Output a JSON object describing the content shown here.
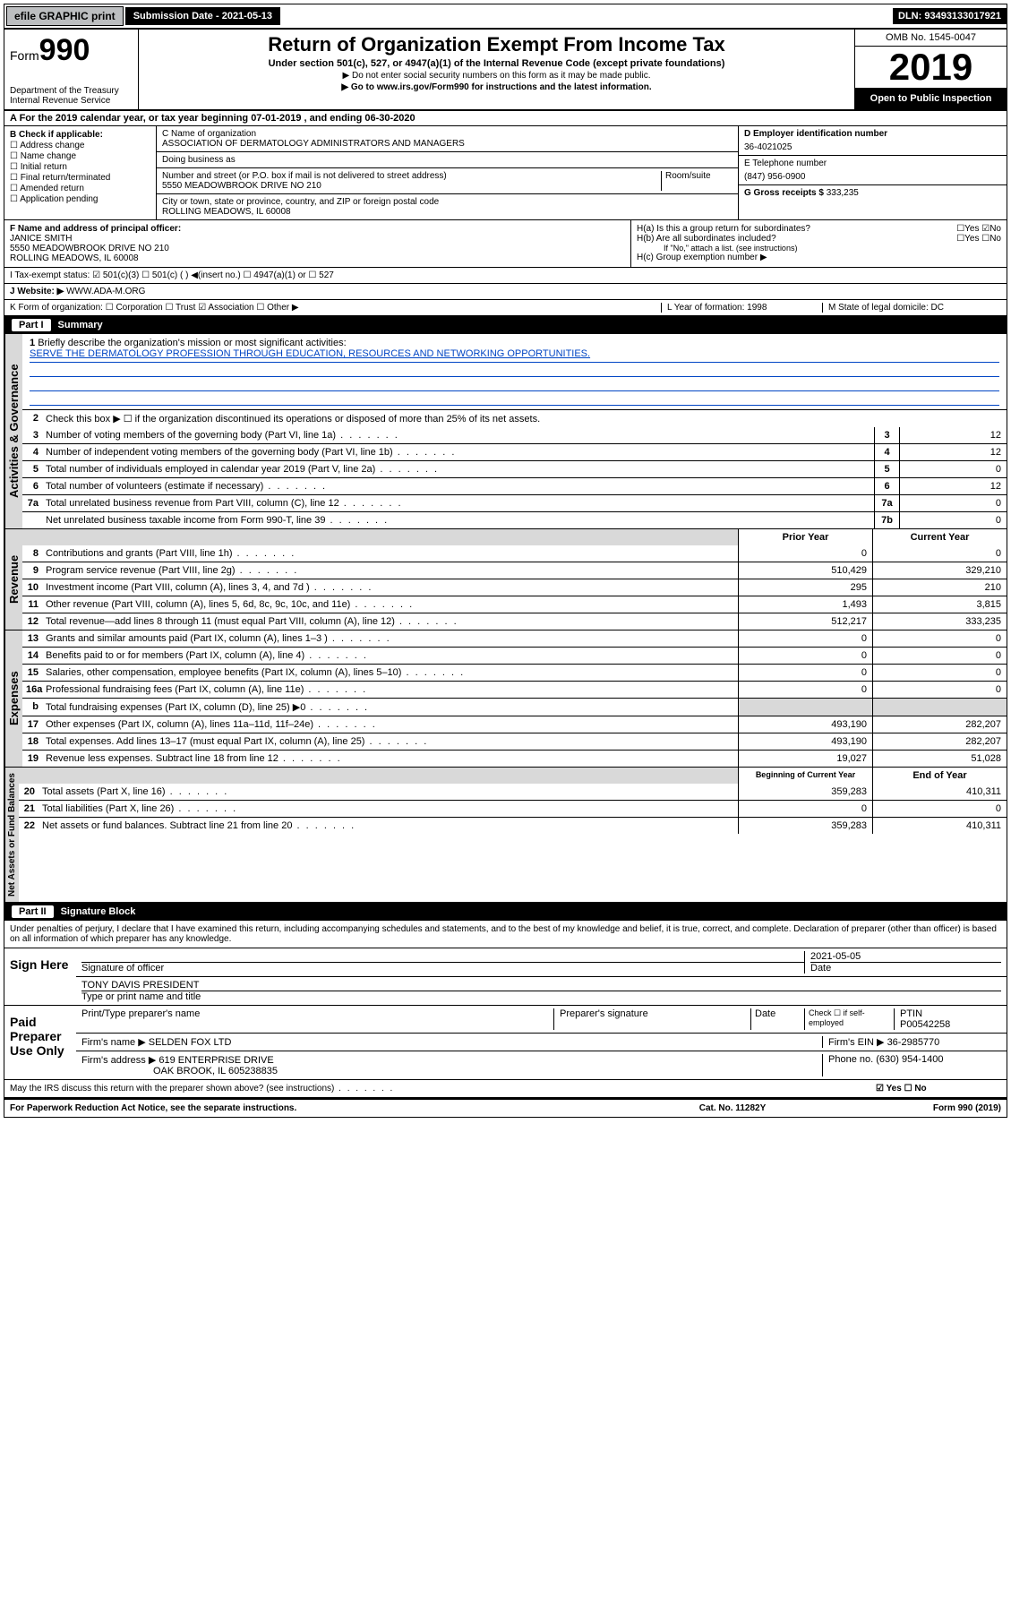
{
  "topbar": {
    "efile": "efile GRAPHIC print",
    "sublabel": "Submission Date - 2021-05-13",
    "dln": "DLN: 93493133017921"
  },
  "header": {
    "form_prefix": "Form",
    "form_num": "990",
    "dept": "Department of the Treasury",
    "irs": "Internal Revenue Service",
    "title": "Return of Organization Exempt From Income Tax",
    "subtitle": "Under section 501(c), 527, or 4947(a)(1) of the Internal Revenue Code (except private foundations)",
    "note1": "▶ Do not enter social security numbers on this form as it may be made public.",
    "note2": "▶ Go to www.irs.gov/Form990 for instructions and the latest information.",
    "omb": "OMB No. 1545-0047",
    "year": "2019",
    "open": "Open to Public Inspection"
  },
  "line_a": "A For the 2019 calendar year, or tax year beginning 07-01-2019   , and ending 06-30-2020",
  "box_b": {
    "title": "B Check if applicable:",
    "opts": [
      "Address change",
      "Name change",
      "Initial return",
      "Final return/terminated",
      "Amended return",
      "Application pending"
    ]
  },
  "box_c": {
    "label_name": "C Name of organization",
    "org": "ASSOCIATION OF DERMATOLOGY ADMINISTRATORS AND MANAGERS",
    "dba_label": "Doing business as",
    "dba": "",
    "addr_label": "Number and street (or P.O. box if mail is not delivered to street address)",
    "room_label": "Room/suite",
    "addr": "5550 MEADOWBROOK DRIVE NO 210",
    "city_label": "City or town, state or province, country, and ZIP or foreign postal code",
    "city": "ROLLING MEADOWS, IL  60008"
  },
  "box_d": {
    "label": "D Employer identification number",
    "val": "36-4021025"
  },
  "box_e": {
    "label": "E Telephone number",
    "val": "(847) 956-0900"
  },
  "box_g": {
    "label": "G Gross receipts $",
    "val": "333,235"
  },
  "box_f": {
    "label": "F Name and address of principal officer:",
    "name": "JANICE SMITH",
    "addr1": "5550 MEADOWBROOK DRIVE NO 210",
    "addr2": "ROLLING MEADOWS, IL  60008"
  },
  "box_h": {
    "a": "H(a)  Is this a group return for subordinates?",
    "b": "H(b)  Are all subordinates included?",
    "bnote": "If \"No,\" attach a list. (see instructions)",
    "c": "H(c)  Group exemption number ▶",
    "a_no": true
  },
  "line_i": "I   Tax-exempt status:    ☑ 501(c)(3)     ☐ 501(c) (  ) ◀(insert no.)     ☐ 4947(a)(1) or   ☐ 527",
  "line_j_label": "J   Website: ▶",
  "line_j_val": "WWW.ADA-M.ORG",
  "line_k": "K Form of organization:   ☐ Corporation   ☐ Trust   ☑ Association   ☐ Other ▶",
  "line_l_year": "L Year of formation: 1998",
  "line_l_state": "M State of legal domicile: DC",
  "part1": {
    "title": "Part I",
    "name": "Summary",
    "section_ag": "Activities & Governance",
    "section_rev": "Revenue",
    "section_exp": "Expenses",
    "section_net": "Net Assets or Fund Balances",
    "l1": "Briefly describe the organization's mission or most significant activities:",
    "mission": "SERVE THE DERMATOLOGY PROFESSION THROUGH EDUCATION, RESOURCES AND NETWORKING OPPORTUNITIES.",
    "l2": "Check this box ▶ ☐  if the organization discontinued its operations or disposed of more than 25% of its net assets.",
    "rows": [
      {
        "n": "3",
        "t": "Number of voting members of the governing body (Part VI, line 1a)",
        "box": "3",
        "v": "12"
      },
      {
        "n": "4",
        "t": "Number of independent voting members of the governing body (Part VI, line 1b)",
        "box": "4",
        "v": "12"
      },
      {
        "n": "5",
        "t": "Total number of individuals employed in calendar year 2019 (Part V, line 2a)",
        "box": "5",
        "v": "0"
      },
      {
        "n": "6",
        "t": "Total number of volunteers (estimate if necessary)",
        "box": "6",
        "v": "12"
      },
      {
        "n": "7a",
        "t": "Total unrelated business revenue from Part VIII, column (C), line 12",
        "box": "7a",
        "v": "0"
      },
      {
        "n": "",
        "t": "Net unrelated business taxable income from Form 990-T, line 39",
        "box": "7b",
        "v": "0"
      }
    ],
    "yr_prior": "Prior Year",
    "yr_curr": "Current Year",
    "rev_rows": [
      {
        "n": "8",
        "t": "Contributions and grants (Part VIII, line 1h)",
        "p": "0",
        "c": "0"
      },
      {
        "n": "9",
        "t": "Program service revenue (Part VIII, line 2g)",
        "p": "510,429",
        "c": "329,210"
      },
      {
        "n": "10",
        "t": "Investment income (Part VIII, column (A), lines 3, 4, and 7d )",
        "p": "295",
        "c": "210"
      },
      {
        "n": "11",
        "t": "Other revenue (Part VIII, column (A), lines 5, 6d, 8c, 9c, 10c, and 11e)",
        "p": "1,493",
        "c": "3,815"
      },
      {
        "n": "12",
        "t": "Total revenue—add lines 8 through 11 (must equal Part VIII, column (A), line 12)",
        "p": "512,217",
        "c": "333,235"
      }
    ],
    "exp_rows": [
      {
        "n": "13",
        "t": "Grants and similar amounts paid (Part IX, column (A), lines 1–3 )",
        "p": "0",
        "c": "0"
      },
      {
        "n": "14",
        "t": "Benefits paid to or for members (Part IX, column (A), line 4)",
        "p": "0",
        "c": "0"
      },
      {
        "n": "15",
        "t": "Salaries, other compensation, employee benefits (Part IX, column (A), lines 5–10)",
        "p": "0",
        "c": "0"
      },
      {
        "n": "16a",
        "t": "Professional fundraising fees (Part IX, column (A), line 11e)",
        "p": "0",
        "c": "0"
      },
      {
        "n": "b",
        "t": "Total fundraising expenses (Part IX, column (D), line 25) ▶0",
        "p": "",
        "c": "",
        "shade": true
      },
      {
        "n": "17",
        "t": "Other expenses (Part IX, column (A), lines 11a–11d, 11f–24e)",
        "p": "493,190",
        "c": "282,207"
      },
      {
        "n": "18",
        "t": "Total expenses. Add lines 13–17 (must equal Part IX, column (A), line 25)",
        "p": "493,190",
        "c": "282,207"
      },
      {
        "n": "19",
        "t": "Revenue less expenses. Subtract line 18 from line 12",
        "p": "19,027",
        "c": "51,028"
      }
    ],
    "net_hdr_p": "Beginning of Current Year",
    "net_hdr_c": "End of Year",
    "net_rows": [
      {
        "n": "20",
        "t": "Total assets (Part X, line 16)",
        "p": "359,283",
        "c": "410,311"
      },
      {
        "n": "21",
        "t": "Total liabilities (Part X, line 26)",
        "p": "0",
        "c": "0"
      },
      {
        "n": "22",
        "t": "Net assets or fund balances. Subtract line 21 from line 20",
        "p": "359,283",
        "c": "410,311"
      }
    ]
  },
  "part2": {
    "title": "Part II",
    "name": "Signature Block",
    "decl": "Under penalties of perjury, I declare that I have examined this return, including accompanying schedules and statements, and to the best of my knowledge and belief, it is true, correct, and complete. Declaration of preparer (other than officer) is based on all information of which preparer has any knowledge.",
    "sign_here": "Sign Here",
    "sig_officer": "Signature of officer",
    "sig_date": "2021-05-05",
    "date_lbl": "Date",
    "officer_name": "TONY DAVIS  PRESIDENT",
    "officer_lbl": "Type or print name and title",
    "paid": "Paid Preparer Use Only",
    "prep_name_lbl": "Print/Type preparer's name",
    "prep_sig_lbl": "Preparer's signature",
    "check_lbl": "Check ☐ if self-employed",
    "ptin_lbl": "PTIN",
    "ptin": "P00542258",
    "firm_name_lbl": "Firm's name   ▶",
    "firm_name": "SELDEN FOX LTD",
    "firm_ein_lbl": "Firm's EIN ▶",
    "firm_ein": "36-2985770",
    "firm_addr_lbl": "Firm's address ▶",
    "firm_addr1": "619 ENTERPRISE DRIVE",
    "firm_addr2": "OAK BROOK, IL  605238835",
    "phone_lbl": "Phone no.",
    "phone": "(630) 954-1400",
    "discuss": "May the IRS discuss this return with the preparer shown above? (see instructions)",
    "discuss_yes": "☑ Yes   ☐ No"
  },
  "footer": {
    "pra": "For Paperwork Reduction Act Notice, see the separate instructions.",
    "cat": "Cat. No. 11282Y",
    "form": "Form 990 (2019)"
  }
}
